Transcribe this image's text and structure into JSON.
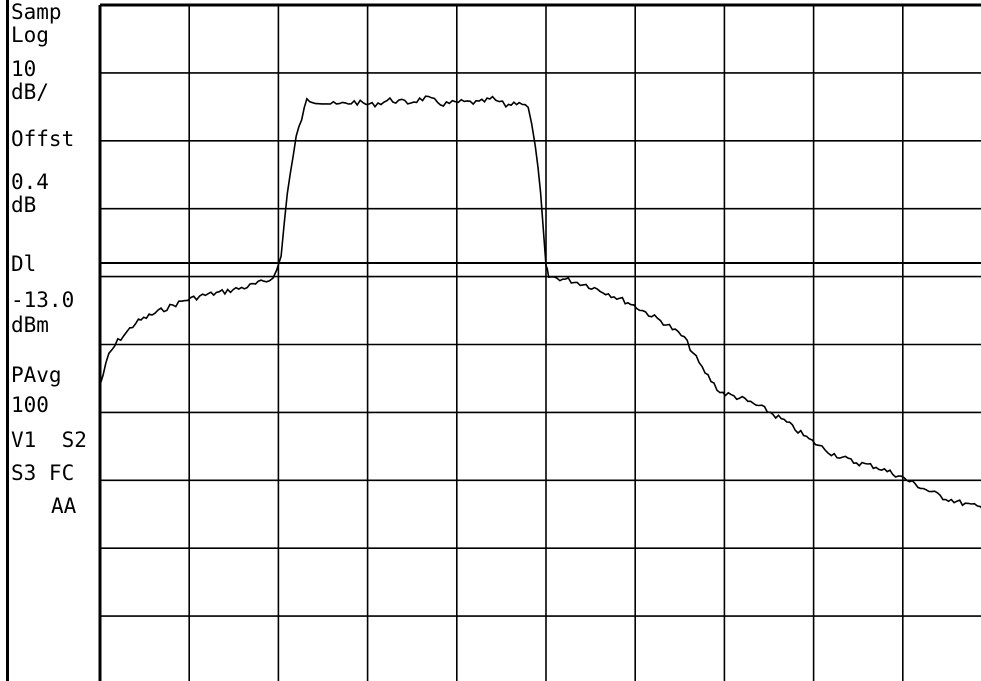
{
  "annotations": {
    "detector": "Samp",
    "scale_type": "Log",
    "scale_value": "10",
    "scale_unit": "dB/",
    "offset_label": "Offst",
    "offset_value": "0.4",
    "offset_unit": "dB",
    "display_line_label": "Dl",
    "display_line_value": "-13.0",
    "display_line_unit": "dBm",
    "average_label": "PAvg",
    "average_count": "100",
    "flags_row1": "V1  S2",
    "flags_row2": "S3 FC",
    "flags_row3": "AA"
  },
  "chart_data": {
    "type": "line",
    "title": "",
    "xlabel": "",
    "ylabel": "",
    "grid": true,
    "grid_divisions": {
      "x": 10,
      "y": 10
    },
    "scale": "log",
    "scale_per_division_db": 10,
    "display_line_dbm": -13.0,
    "series": [
      {
        "values": [
          [
            0.0,
            5.6
          ],
          [
            0.1,
            5.15
          ],
          [
            0.2,
            4.95
          ],
          [
            0.3,
            4.82
          ],
          [
            0.4,
            4.68
          ],
          [
            0.55,
            4.58
          ],
          [
            0.75,
            4.46
          ],
          [
            0.95,
            4.35
          ],
          [
            1.15,
            4.28
          ],
          [
            1.4,
            4.22
          ],
          [
            1.65,
            4.15
          ],
          [
            1.9,
            4.05
          ],
          [
            1.98,
            3.92
          ],
          [
            2.03,
            3.7
          ],
          [
            2.1,
            2.75
          ],
          [
            2.2,
            1.95
          ],
          [
            2.32,
            1.4
          ],
          [
            2.45,
            1.42
          ],
          [
            2.65,
            1.47
          ],
          [
            2.85,
            1.43
          ],
          [
            3.05,
            1.47
          ],
          [
            3.25,
            1.4
          ],
          [
            3.45,
            1.44
          ],
          [
            3.65,
            1.37
          ],
          [
            3.85,
            1.46
          ],
          [
            4.05,
            1.43
          ],
          [
            4.25,
            1.44
          ],
          [
            4.4,
            1.38
          ],
          [
            4.55,
            1.48
          ],
          [
            4.7,
            1.42
          ],
          [
            4.8,
            1.52
          ],
          [
            4.88,
            2.05
          ],
          [
            4.94,
            2.8
          ],
          [
            5.0,
            3.85
          ],
          [
            5.03,
            4.0
          ],
          [
            5.25,
            4.05
          ],
          [
            5.45,
            4.12
          ],
          [
            5.7,
            4.25
          ],
          [
            5.95,
            4.4
          ],
          [
            6.15,
            4.55
          ],
          [
            6.35,
            4.7
          ],
          [
            6.55,
            4.9
          ],
          [
            6.75,
            5.35
          ],
          [
            6.95,
            5.7
          ],
          [
            7.2,
            5.8
          ],
          [
            7.45,
            5.95
          ],
          [
            7.7,
            6.15
          ],
          [
            7.95,
            6.4
          ],
          [
            8.2,
            6.6
          ],
          [
            8.45,
            6.73
          ],
          [
            8.7,
            6.8
          ],
          [
            8.95,
            6.93
          ],
          [
            9.2,
            7.1
          ],
          [
            9.45,
            7.25
          ],
          [
            9.7,
            7.35
          ],
          [
            9.94,
            7.42
          ]
        ]
      }
    ]
  }
}
